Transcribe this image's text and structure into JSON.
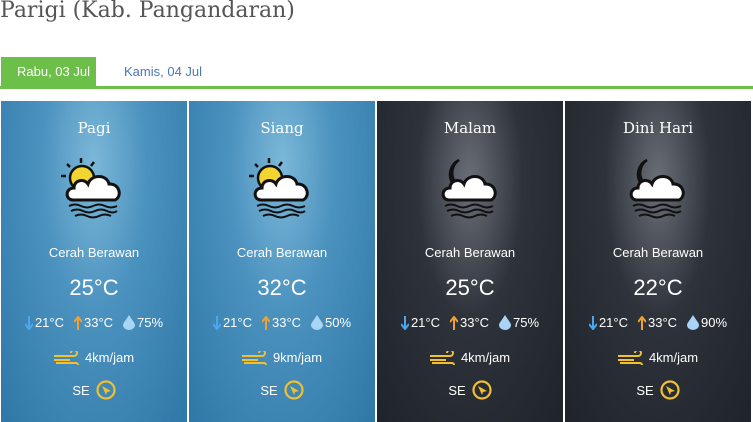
{
  "title": "Parigi (Kab. Pangandaran)",
  "tabs": [
    {
      "label": "Rabu, 03 Jul",
      "active": true
    },
    {
      "label": "Kamis, 04 Jul",
      "active": false
    }
  ],
  "colors": {
    "accent": "#6cc04a",
    "tab_link": "#4a78b8",
    "low": "#4aa8f0",
    "high": "#f0a030",
    "humidity": "#a8d4f5",
    "wind": "#f0c030"
  },
  "panels": [
    {
      "period": "Pagi",
      "theme": "day",
      "icon": "sun-cloud-icon",
      "condition": "Cerah Berawan",
      "temp": "25°C",
      "low": "21°C",
      "high": "33°C",
      "humidity": "75%",
      "wind": "4km/jam",
      "direction": "SE"
    },
    {
      "period": "Siang",
      "theme": "day",
      "icon": "sun-cloud-icon",
      "condition": "Cerah Berawan",
      "temp": "32°C",
      "low": "21°C",
      "high": "33°C",
      "humidity": "50%",
      "wind": "9km/jam",
      "direction": "SE"
    },
    {
      "period": "Malam",
      "theme": "night",
      "icon": "moon-cloud-icon",
      "condition": "Cerah Berawan",
      "temp": "25°C",
      "low": "21°C",
      "high": "33°C",
      "humidity": "75%",
      "wind": "4km/jam",
      "direction": "SE"
    },
    {
      "period": "Dini Hari",
      "theme": "night",
      "icon": "moon-cloud-icon",
      "condition": "Cerah Berawan",
      "temp": "22°C",
      "low": "21°C",
      "high": "33°C",
      "humidity": "90%",
      "wind": "4km/jam",
      "direction": "SE"
    }
  ]
}
